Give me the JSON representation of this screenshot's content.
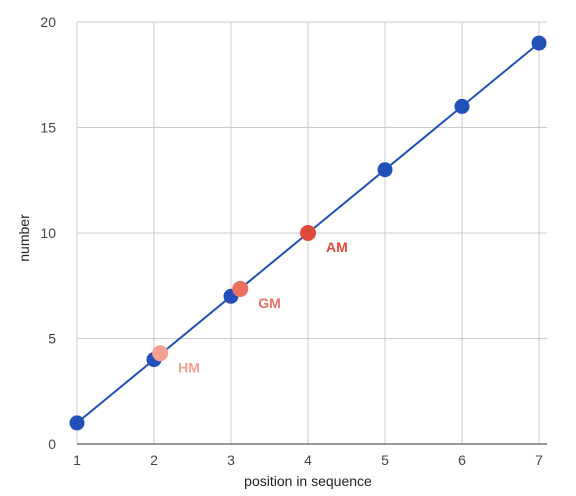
{
  "chart_data": {
    "type": "scatter",
    "xlabel": "position in sequence",
    "ylabel": "number",
    "xlim": [
      1,
      7
    ],
    "ylim": [
      0,
      20
    ],
    "x_ticks": [
      "1",
      "2",
      "3",
      "4",
      "5",
      "6",
      "7"
    ],
    "y_ticks": [
      "0",
      "5",
      "10",
      "15",
      "20"
    ],
    "grid": true,
    "series": [
      {
        "color": "#2150b8",
        "line": true,
        "points": [
          {
            "x": 1,
            "y": 1
          },
          {
            "x": 2,
            "y": 4
          },
          {
            "x": 3,
            "y": 7
          },
          {
            "x": 4,
            "y": 10
          },
          {
            "x": 5,
            "y": 13
          },
          {
            "x": 6,
            "y": 16
          },
          {
            "x": 7,
            "y": 19
          }
        ]
      }
    ],
    "annotations": [
      {
        "label": "HM",
        "x": 2.08,
        "y": 4.3,
        "color": "#f4a093"
      },
      {
        "label": "GM",
        "x": 3.12,
        "y": 7.35,
        "color": "#ea7162"
      },
      {
        "label": "AM",
        "x": 4.0,
        "y": 10.0,
        "color": "#e04a3a"
      }
    ]
  }
}
